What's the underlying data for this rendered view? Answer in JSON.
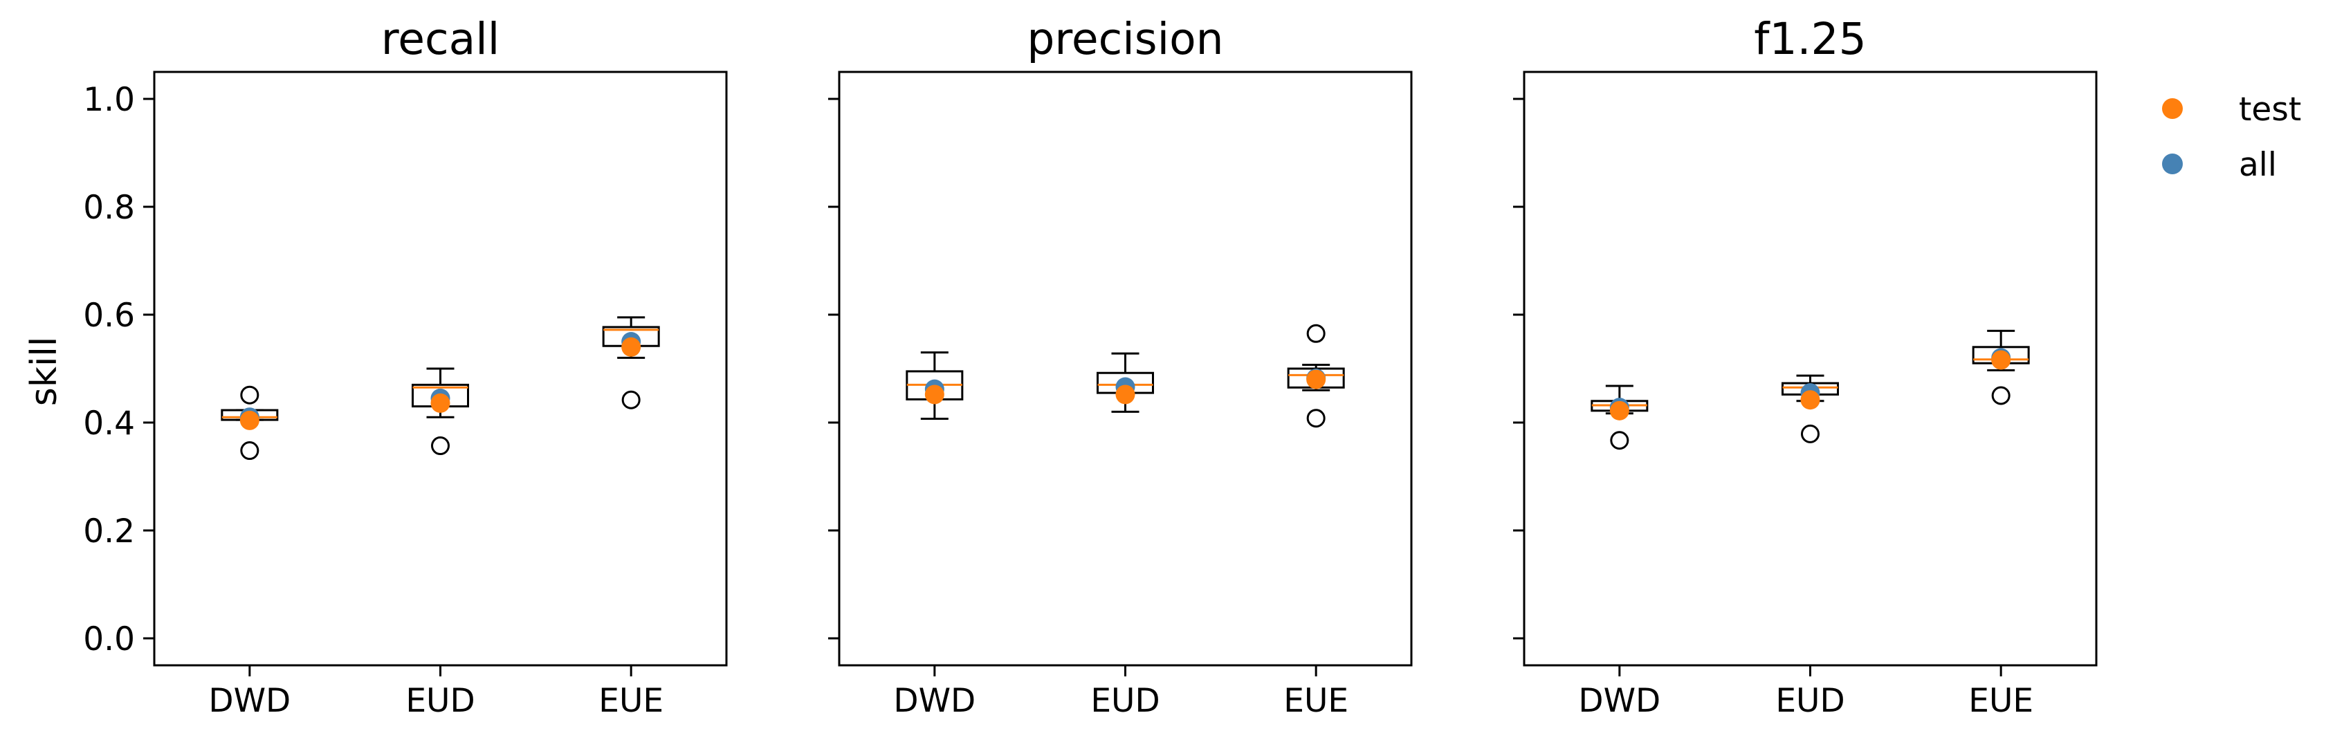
{
  "chart_data": {
    "type": "box",
    "ylabel": "skill",
    "ylim": [
      -0.05,
      1.05
    ],
    "yticks": [
      0.0,
      0.2,
      0.4,
      0.6,
      0.8,
      1.0
    ],
    "ytick_labels": [
      "0.0",
      "0.2",
      "0.4",
      "0.6",
      "0.8",
      "1.0"
    ],
    "categories": [
      "DWD",
      "EUD",
      "EUE"
    ],
    "legend": {
      "position": "right-outside-top",
      "entries": [
        {
          "label": "test",
          "color": "#ff7f0e"
        },
        {
          "label": "all",
          "color": "#4682b4"
        }
      ]
    },
    "median_color": "#ff7f0e",
    "panels": [
      {
        "title": "recall",
        "boxes": [
          {
            "category": "DWD",
            "whisker_low": 0.405,
            "q1": 0.405,
            "median": 0.41,
            "q3": 0.423,
            "whisker_high": 0.423,
            "outliers": [
              0.451,
              0.348
            ]
          },
          {
            "category": "EUD",
            "whisker_low": 0.41,
            "q1": 0.43,
            "median": 0.465,
            "q3": 0.47,
            "whisker_high": 0.5,
            "outliers": [
              0.357
            ]
          },
          {
            "category": "EUE",
            "whisker_low": 0.52,
            "q1": 0.542,
            "median": 0.572,
            "q3": 0.577,
            "whisker_high": 0.595,
            "outliers": [
              0.442
            ]
          }
        ],
        "all": [
          0.41,
          0.445,
          0.55
        ],
        "test": [
          0.404,
          0.436,
          0.54
        ]
      },
      {
        "title": "precision",
        "boxes": [
          {
            "category": "DWD",
            "whisker_low": 0.407,
            "q1": 0.443,
            "median": 0.47,
            "q3": 0.495,
            "whisker_high": 0.53,
            "outliers": []
          },
          {
            "category": "EUD",
            "whisker_low": 0.42,
            "q1": 0.455,
            "median": 0.47,
            "q3": 0.492,
            "whisker_high": 0.528,
            "outliers": []
          },
          {
            "category": "EUE",
            "whisker_low": 0.46,
            "q1": 0.465,
            "median": 0.488,
            "q3": 0.5,
            "whisker_high": 0.507,
            "outliers": [
              0.565,
              0.408
            ]
          }
        ],
        "all": [
          0.462,
          0.466,
          0.482
        ],
        "test": [
          0.452,
          0.452,
          0.48
        ]
      },
      {
        "title": "f1.25",
        "boxes": [
          {
            "category": "DWD",
            "whisker_low": 0.417,
            "q1": 0.422,
            "median": 0.432,
            "q3": 0.44,
            "whisker_high": 0.468,
            "outliers": [
              0.367
            ]
          },
          {
            "category": "EUD",
            "whisker_low": 0.44,
            "q1": 0.452,
            "median": 0.465,
            "q3": 0.473,
            "whisker_high": 0.487,
            "outliers": [
              0.379
            ]
          },
          {
            "category": "EUE",
            "whisker_low": 0.497,
            "q1": 0.51,
            "median": 0.517,
            "q3": 0.54,
            "whisker_high": 0.57,
            "outliers": [
              0.45
            ]
          }
        ],
        "all": [
          0.428,
          0.455,
          0.52
        ],
        "test": [
          0.422,
          0.442,
          0.516
        ]
      }
    ]
  }
}
